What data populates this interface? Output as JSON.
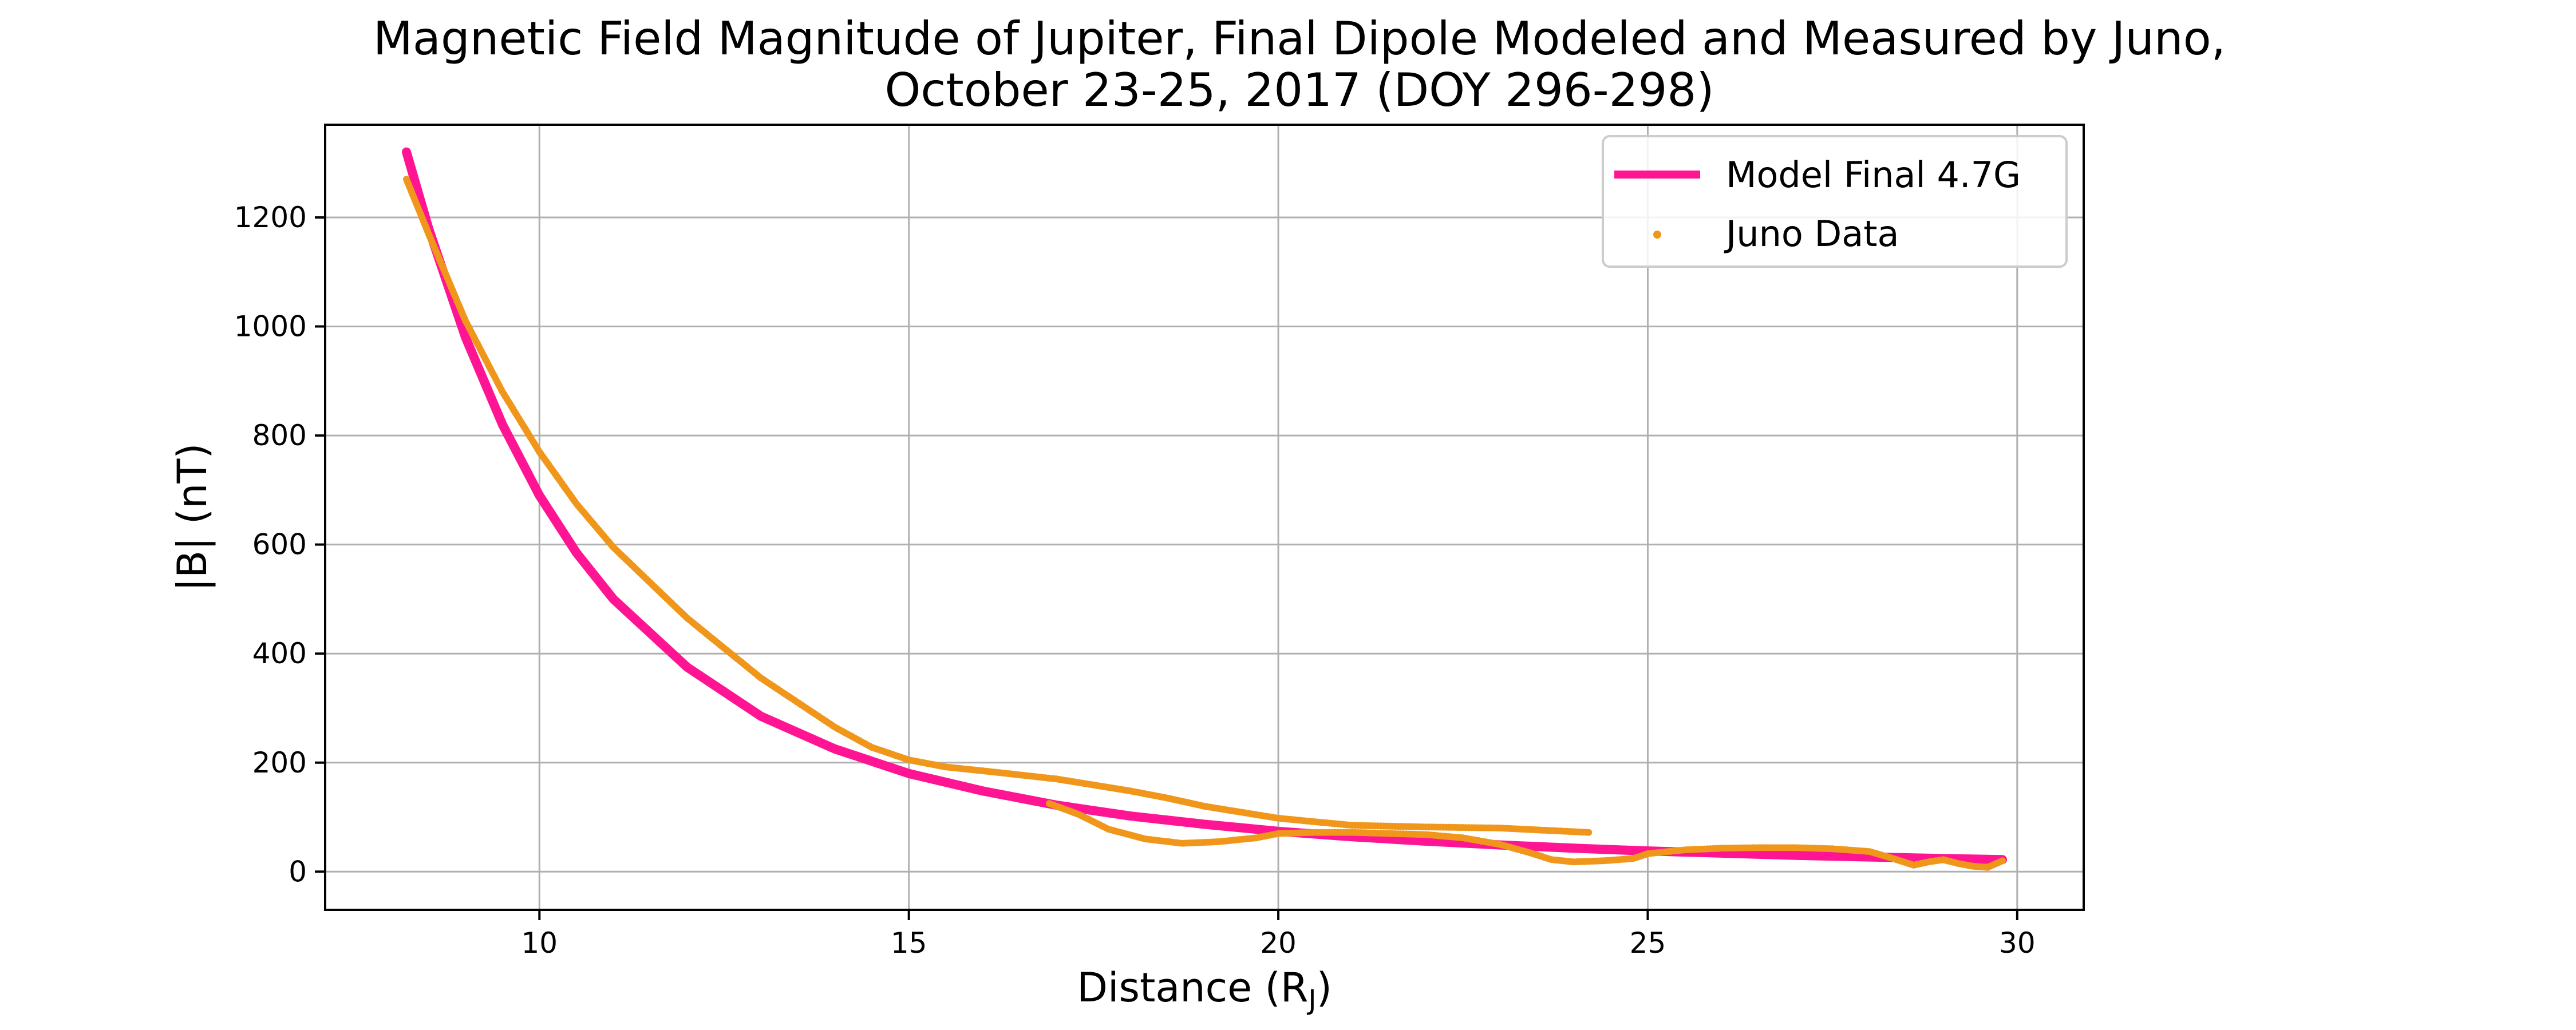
{
  "chart_data": {
    "type": "line",
    "title_line1": "Magnetic Field Magnitude of Jupiter, Final Dipole Modeled and Measured by Juno,",
    "title_line2": "October 23-25, 2017 (DOY 296-298)",
    "xlabel": "Distance (R",
    "xlabel_sub": "J",
    "xlabel_end": ")",
    "ylabel": "|B| (nT)",
    "xlim": [
      7.1,
      30.9
    ],
    "ylim": [
      -70,
      1370
    ],
    "xticks": [
      10,
      15,
      20,
      25,
      30
    ],
    "yticks": [
      0,
      200,
      400,
      600,
      800,
      1000,
      1200
    ],
    "grid": true,
    "legend_position": "top-right",
    "series": [
      {
        "name": "Model Final 4.7G",
        "style": "line",
        "color": "#ff1493",
        "x": [
          8.2,
          8.5,
          9.0,
          9.5,
          10.0,
          10.5,
          11.0,
          12.0,
          13.0,
          14.0,
          15.0,
          16.0,
          17.0,
          18.0,
          19.0,
          20.0,
          21.0,
          22.0,
          23.0,
          24.0,
          25.0,
          26.0,
          27.0,
          28.0,
          29.0,
          29.8
        ],
        "y": [
          1320,
          1180,
          980,
          820,
          690,
          585,
          500,
          375,
          285,
          225,
          180,
          148,
          122,
          102,
          87,
          74,
          64,
          56,
          49,
          43,
          38,
          34,
          30,
          27,
          24,
          22
        ]
      },
      {
        "name": "Juno Data",
        "style": "points",
        "color": "#f0961a",
        "segments": [
          {
            "x": [
              8.2,
              8.5,
              9.0,
              9.5,
              10.0,
              10.5,
              11.0,
              12.0,
              13.0,
              14.0,
              14.5,
              15.0,
              15.5,
              16.0,
              17.0,
              18.0,
              18.5,
              19.0,
              20.0,
              21.0,
              22.0,
              23.0,
              24.2
            ],
            "y": [
              1270,
              1170,
              1010,
              880,
              770,
              675,
              595,
              465,
              355,
              265,
              228,
              205,
              192,
              185,
              170,
              148,
              135,
              120,
              98,
              85,
              82,
              80,
              72
            ]
          },
          {
            "x": [
              16.9,
              17.3,
              17.7,
              18.2,
              18.7,
              19.2,
              19.7,
              20.0,
              20.5,
              21.0,
              21.5,
              22.0,
              22.5,
              23.0,
              23.4,
              23.7,
              24.0,
              24.4,
              24.8,
              25.0,
              25.5,
              26.0,
              26.5,
              27.0,
              27.5,
              28.0,
              28.3,
              28.6,
              28.8,
              29.0,
              29.2,
              29.4,
              29.6,
              29.8
            ],
            "y": [
              125,
              105,
              78,
              60,
              52,
              55,
              62,
              70,
              72,
              72,
              70,
              68,
              62,
              50,
              35,
              22,
              18,
              20,
              24,
              33,
              40,
              43,
              44,
              44,
              42,
              37,
              25,
              12,
              18,
              22,
              15,
              10,
              8,
              20
            ]
          }
        ]
      }
    ]
  }
}
